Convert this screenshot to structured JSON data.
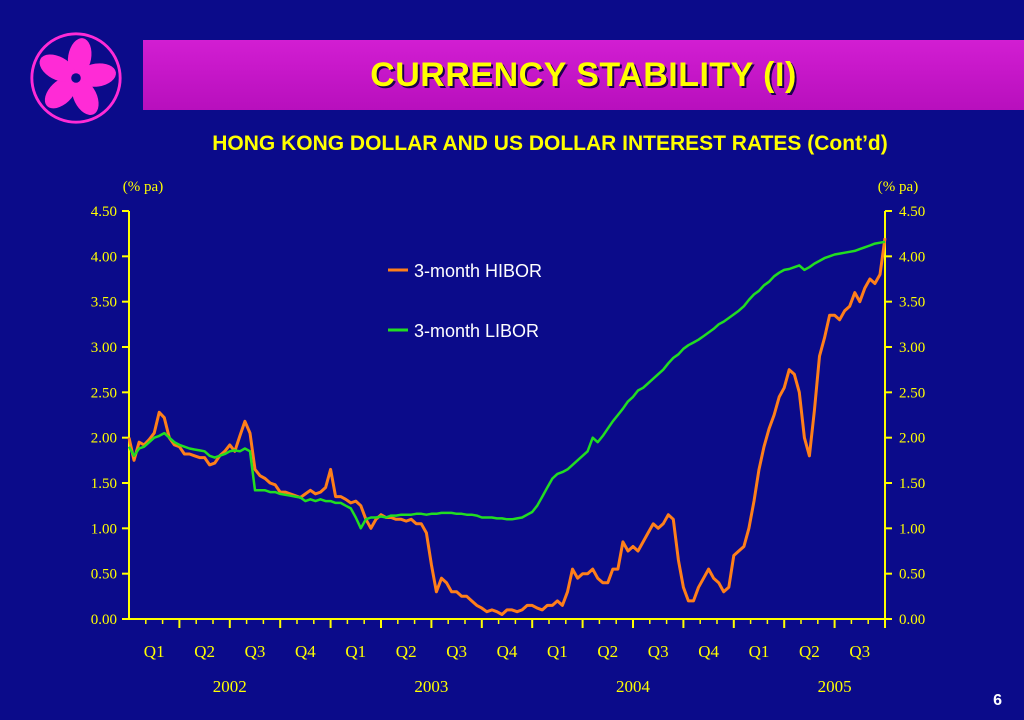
{
  "slide": {
    "title": "CURRENCY STABILITY  (I)",
    "page_number": "6",
    "logo": "bauhinia-flower-icon",
    "colors": {
      "background": "#0b0b8a",
      "title_bar": "#c81ac8",
      "title_text": "#ffff00",
      "axis": "#ffff00",
      "hibor": "#ff7f1a",
      "libor": "#22dd22"
    }
  },
  "chart_data": {
    "type": "line",
    "title": "HONG KONG DOLLAR AND US DOLLAR INTEREST RATES (Cont’d)",
    "ylabel_left": "(% pa)",
    "ylabel_right": "(% pa)",
    "ylim": [
      0,
      4.5
    ],
    "y_ticks": [
      "0.00",
      "0.50",
      "1.00",
      "1.50",
      "2.00",
      "2.50",
      "3.00",
      "3.50",
      "4.00",
      "4.50"
    ],
    "x_quarters": [
      "Q1",
      "Q2",
      "Q3",
      "Q4",
      "Q1",
      "Q2",
      "Q3",
      "Q4",
      "Q1",
      "Q2",
      "Q3",
      "Q4",
      "Q1",
      "Q2",
      "Q3"
    ],
    "x_years": [
      "2002",
      "2003",
      "2004",
      "2005"
    ],
    "legend_placement": "top-center",
    "grid": false,
    "series": [
      {
        "name": "3-month HIBOR",
        "color": "#ff7f1a",
        "x": [
          0,
          0.1,
          0.2,
          0.3,
          0.4,
          0.5,
          0.6,
          0.7,
          0.8,
          0.9,
          1.0,
          1.1,
          1.2,
          1.3,
          1.4,
          1.5,
          1.6,
          1.7,
          1.8,
          1.9,
          2.0,
          2.1,
          2.2,
          2.3,
          2.4,
          2.5,
          2.6,
          2.7,
          2.8,
          2.9,
          3.0,
          3.1,
          3.2,
          3.3,
          3.4,
          3.5,
          3.6,
          3.7,
          3.8,
          3.9,
          4.0,
          4.1,
          4.2,
          4.3,
          4.4,
          4.5,
          4.6,
          4.7,
          4.8,
          4.9,
          5.0,
          5.1,
          5.2,
          5.3,
          5.4,
          5.5,
          5.6,
          5.7,
          5.8,
          5.9,
          6.0,
          6.1,
          6.2,
          6.3,
          6.4,
          6.5,
          6.6,
          6.7,
          6.8,
          6.9,
          7.0,
          7.1,
          7.2,
          7.3,
          7.4,
          7.5,
          7.6,
          7.7,
          7.8,
          7.9,
          8.0,
          8.1,
          8.2,
          8.3,
          8.4,
          8.5,
          8.6,
          8.7,
          8.8,
          8.9,
          9.0,
          9.1,
          9.2,
          9.3,
          9.4,
          9.5,
          9.6,
          9.7,
          9.8,
          9.9,
          10.0,
          10.1,
          10.2,
          10.3,
          10.4,
          10.5,
          10.6,
          10.7,
          10.8,
          10.9,
          11.0,
          11.1,
          11.2,
          11.3,
          11.4,
          11.5,
          11.6,
          11.7,
          11.8,
          11.9,
          12.0,
          12.1,
          12.2,
          12.3,
          12.4,
          12.5,
          12.6,
          12.7,
          12.8,
          12.9,
          13.0,
          13.1,
          13.2,
          13.3,
          13.4,
          13.5,
          13.6,
          13.7,
          13.8,
          13.9,
          14.0,
          14.1,
          14.2,
          14.3,
          14.4,
          14.5,
          14.6,
          14.7,
          14.8,
          14.9,
          15.0
        ],
        "values": [
          2.0,
          1.75,
          1.95,
          1.92,
          1.98,
          2.05,
          2.28,
          2.22,
          2.0,
          1.92,
          1.9,
          1.82,
          1.82,
          1.8,
          1.78,
          1.78,
          1.7,
          1.72,
          1.8,
          1.85,
          1.92,
          1.85,
          2.02,
          2.18,
          2.05,
          1.65,
          1.58,
          1.55,
          1.5,
          1.48,
          1.4,
          1.4,
          1.38,
          1.36,
          1.34,
          1.38,
          1.42,
          1.38,
          1.4,
          1.45,
          1.65,
          1.35,
          1.35,
          1.32,
          1.28,
          1.3,
          1.25,
          1.1,
          1.0,
          1.1,
          1.15,
          1.12,
          1.12,
          1.1,
          1.1,
          1.08,
          1.1,
          1.05,
          1.05,
          0.95,
          0.6,
          0.3,
          0.45,
          0.4,
          0.3,
          0.3,
          0.25,
          0.25,
          0.2,
          0.15,
          0.12,
          0.08,
          0.1,
          0.08,
          0.05,
          0.1,
          0.1,
          0.08,
          0.1,
          0.15,
          0.15,
          0.12,
          0.1,
          0.15,
          0.15,
          0.2,
          0.15,
          0.3,
          0.55,
          0.45,
          0.5,
          0.5,
          0.55,
          0.45,
          0.4,
          0.4,
          0.55,
          0.55,
          0.85,
          0.75,
          0.8,
          0.75,
          0.85,
          0.95,
          1.05,
          1.0,
          1.05,
          1.15,
          1.1,
          0.65,
          0.35,
          0.2,
          0.2,
          0.35,
          0.45,
          0.55,
          0.45,
          0.4,
          0.3,
          0.35,
          0.7,
          0.75,
          0.8,
          1.0,
          1.3,
          1.65,
          1.9,
          2.1,
          2.25,
          2.45,
          2.55,
          2.75,
          2.7,
          2.5,
          2.0,
          1.8,
          2.3,
          2.9,
          3.1,
          3.35,
          3.35,
          3.3,
          3.4,
          3.45,
          3.6,
          3.5,
          3.65,
          3.75,
          3.7,
          3.8,
          4.2
        ]
      },
      {
        "name": "3-month LIBOR",
        "color": "#22dd22",
        "x": [
          0,
          0.1,
          0.2,
          0.3,
          0.4,
          0.5,
          0.6,
          0.7,
          0.8,
          0.9,
          1.0,
          1.1,
          1.2,
          1.3,
          1.4,
          1.5,
          1.6,
          1.7,
          1.8,
          1.9,
          2.0,
          2.1,
          2.2,
          2.3,
          2.4,
          2.5,
          2.6,
          2.7,
          2.8,
          2.9,
          3.0,
          3.1,
          3.2,
          3.3,
          3.4,
          3.5,
          3.6,
          3.7,
          3.8,
          3.9,
          4.0,
          4.1,
          4.2,
          4.3,
          4.4,
          4.5,
          4.6,
          4.7,
          4.8,
          4.9,
          5.0,
          5.1,
          5.2,
          5.3,
          5.4,
          5.5,
          5.6,
          5.7,
          5.8,
          5.9,
          6.0,
          6.1,
          6.2,
          6.3,
          6.4,
          6.5,
          6.6,
          6.7,
          6.8,
          6.9,
          7.0,
          7.1,
          7.2,
          7.3,
          7.4,
          7.5,
          7.6,
          7.7,
          7.8,
          7.9,
          8.0,
          8.1,
          8.2,
          8.3,
          8.4,
          8.5,
          8.6,
          8.7,
          8.8,
          8.9,
          9.0,
          9.1,
          9.2,
          9.3,
          9.4,
          9.5,
          9.6,
          9.7,
          9.8,
          9.9,
          10.0,
          10.1,
          10.2,
          10.3,
          10.4,
          10.5,
          10.6,
          10.7,
          10.8,
          10.9,
          11.0,
          11.1,
          11.2,
          11.3,
          11.4,
          11.5,
          11.6,
          11.7,
          11.8,
          11.9,
          12.0,
          12.1,
          12.2,
          12.3,
          12.4,
          12.5,
          12.6,
          12.7,
          12.8,
          12.9,
          13.0,
          13.1,
          13.2,
          13.3,
          13.4,
          13.5,
          13.6,
          13.7,
          13.8,
          13.9,
          14.0,
          14.1,
          14.2,
          14.3,
          14.4,
          14.5,
          14.6,
          14.7,
          14.8,
          14.9,
          15.0
        ],
        "values": [
          1.9,
          1.8,
          1.88,
          1.9,
          1.95,
          2.0,
          2.02,
          2.05,
          2.0,
          1.95,
          1.92,
          1.9,
          1.88,
          1.87,
          1.86,
          1.85,
          1.8,
          1.78,
          1.8,
          1.82,
          1.85,
          1.86,
          1.85,
          1.88,
          1.85,
          1.42,
          1.42,
          1.42,
          1.4,
          1.4,
          1.38,
          1.37,
          1.36,
          1.35,
          1.34,
          1.3,
          1.32,
          1.3,
          1.32,
          1.3,
          1.3,
          1.28,
          1.28,
          1.25,
          1.22,
          1.12,
          1.0,
          1.1,
          1.12,
          1.12,
          1.13,
          1.12,
          1.14,
          1.14,
          1.15,
          1.15,
          1.15,
          1.16,
          1.16,
          1.15,
          1.16,
          1.16,
          1.17,
          1.17,
          1.17,
          1.16,
          1.16,
          1.15,
          1.15,
          1.14,
          1.12,
          1.12,
          1.12,
          1.11,
          1.11,
          1.1,
          1.1,
          1.11,
          1.12,
          1.15,
          1.18,
          1.25,
          1.35,
          1.45,
          1.55,
          1.6,
          1.62,
          1.65,
          1.7,
          1.75,
          1.8,
          1.85,
          2.0,
          1.95,
          2.02,
          2.1,
          2.18,
          2.25,
          2.32,
          2.4,
          2.45,
          2.52,
          2.55,
          2.6,
          2.65,
          2.7,
          2.75,
          2.82,
          2.88,
          2.92,
          2.98,
          3.02,
          3.05,
          3.08,
          3.12,
          3.16,
          3.2,
          3.25,
          3.28,
          3.32,
          3.36,
          3.4,
          3.45,
          3.52,
          3.58,
          3.62,
          3.68,
          3.72,
          3.78,
          3.82,
          3.85,
          3.86,
          3.88,
          3.9,
          3.85,
          3.88,
          3.92,
          3.95,
          3.98,
          4.0,
          4.02,
          4.03,
          4.04,
          4.05,
          4.06,
          4.08,
          4.1,
          4.12,
          4.14,
          4.15,
          4.16
        ]
      }
    ]
  }
}
